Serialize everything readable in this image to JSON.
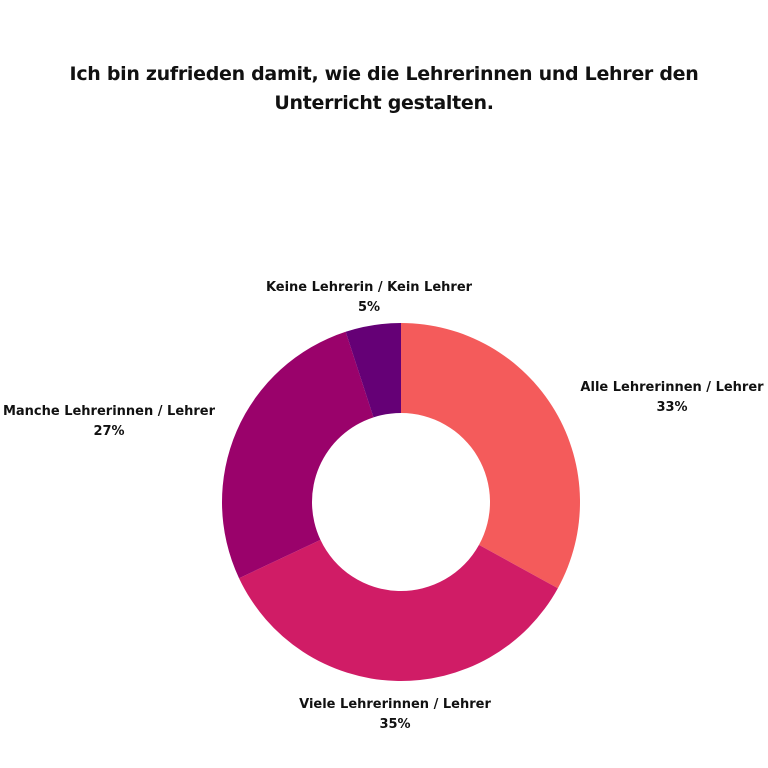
{
  "chart_data": {
    "type": "pie",
    "title": "Ich bin zufrieden damit, wie die Lehrerinnen und Lehrer den Unterricht gestalten.",
    "donut": true,
    "legend": "none",
    "slices": [
      {
        "label": "Alle Lehrerinnen / Lehrer",
        "value": 33,
        "value_label": "33%",
        "color": "#f45b5b"
      },
      {
        "label": "Viele Lehrerinnen / Lehrer",
        "value": 35,
        "value_label": "35%",
        "color": "#d01c66"
      },
      {
        "label": "Manche Lehrerinnen / Lehrer",
        "value": 27,
        "value_label": "27%",
        "color": "#9a026b"
      },
      {
        "label": "Keine Lehrerin / Kein Lehrer",
        "value": 5,
        "value_label": "5%",
        "color": "#650076"
      }
    ]
  }
}
